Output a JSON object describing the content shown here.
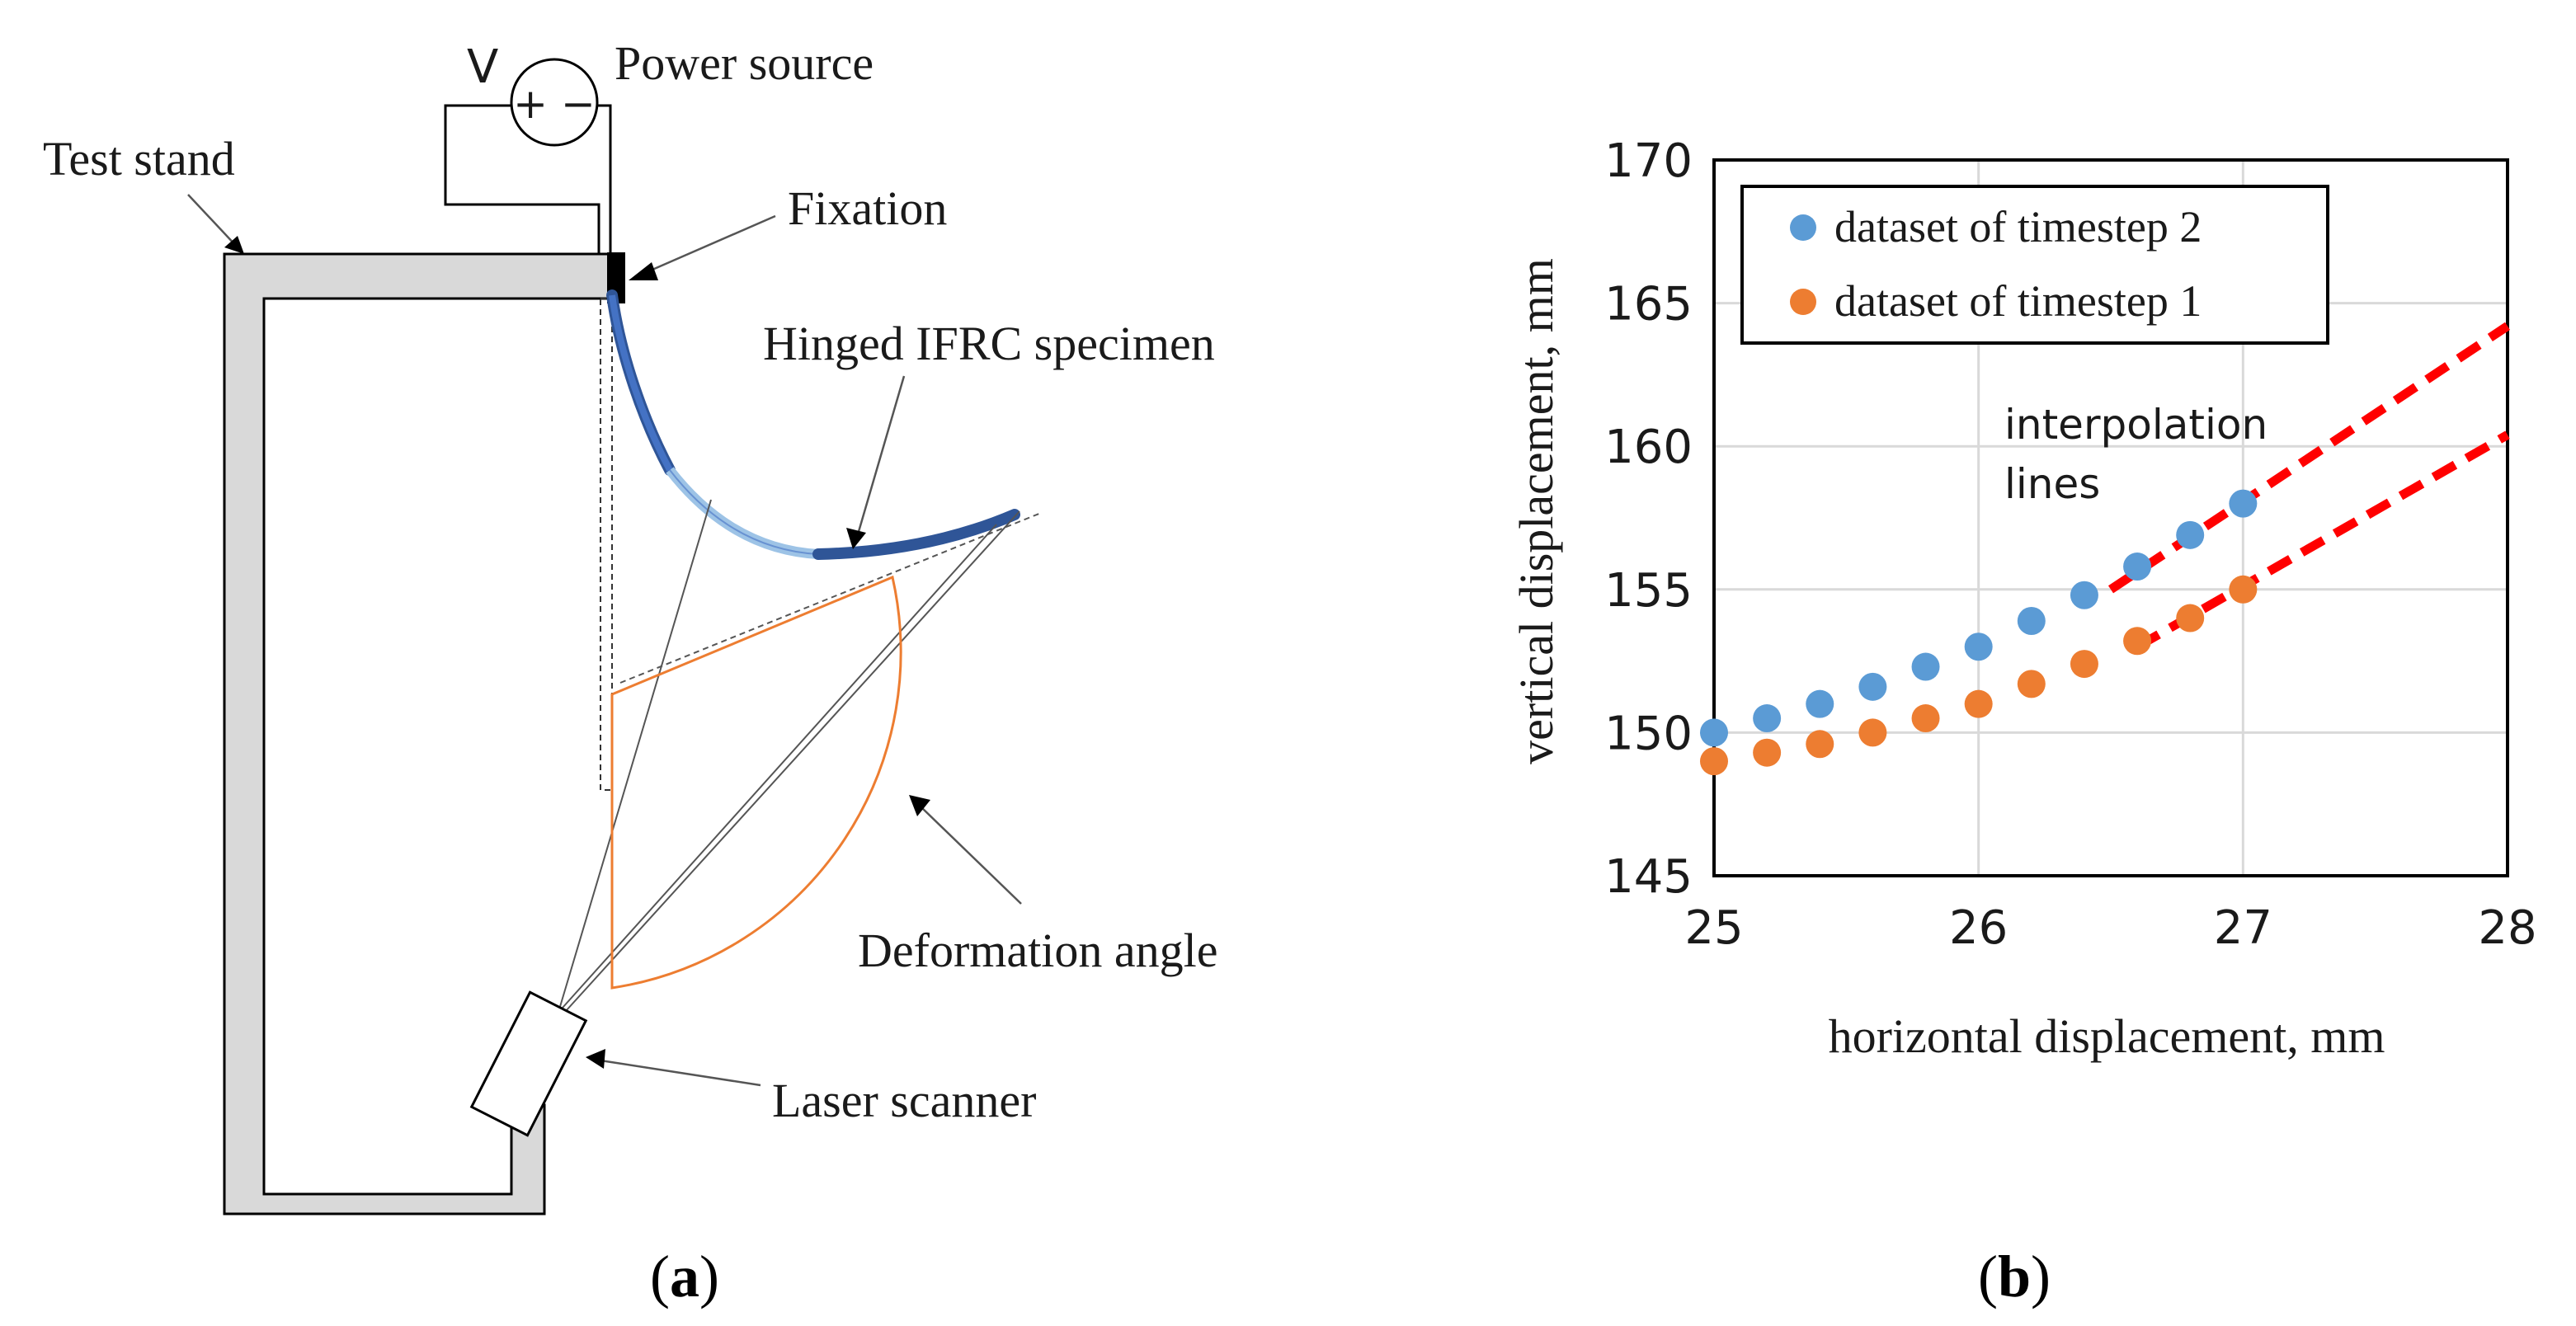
{
  "panel_a": {
    "caption_open": "(",
    "caption_letter": "a",
    "caption_close": ")",
    "labels": {
      "voltage": "V",
      "power_source": "Power source",
      "plus_minus": "+ −",
      "test_stand": "Test stand",
      "fixation": "Fixation",
      "specimen": "Hinged IFRC specimen",
      "deformation_angle": "Deformation angle",
      "laser_scanner": "Laser scanner"
    },
    "colors": {
      "stand_fill": "#d9d9d9",
      "specimen_dark": "#2f5597",
      "specimen_mid": "#4472c4",
      "specimen_light": "#9dc3e6",
      "angle_color": "#ed7d31"
    }
  },
  "panel_b": {
    "caption_open": "(",
    "caption_letter": "b",
    "caption_close": ")"
  },
  "chart_data": {
    "type": "scatter",
    "xlabel": "horizontal displacement, mm",
    "ylabel": "vertical displacement, mm",
    "xlim": [
      25,
      28
    ],
    "ylim": [
      145,
      170
    ],
    "xticks": [
      "25",
      "26",
      "27",
      "28"
    ],
    "yticks": [
      "145",
      "150",
      "155",
      "160",
      "165",
      "170"
    ],
    "grid": true,
    "legend_position": "top-left",
    "series": [
      {
        "name": "dataset of timestep 2",
        "color": "#5b9bd5",
        "x": [
          25.0,
          25.2,
          25.4,
          25.6,
          25.8,
          26.0,
          26.2,
          26.4,
          26.6,
          26.8,
          27.0
        ],
        "y": [
          150.0,
          150.5,
          151.0,
          151.6,
          152.3,
          153.0,
          153.9,
          154.8,
          155.8,
          156.9,
          158.0
        ]
      },
      {
        "name": "dataset of timestep 1",
        "color": "#ed7d31",
        "x": [
          25.0,
          25.2,
          25.4,
          25.6,
          25.8,
          26.0,
          26.2,
          26.4,
          26.6,
          26.8,
          27.0
        ],
        "y": [
          149.0,
          149.3,
          149.6,
          150.0,
          150.5,
          151.0,
          151.7,
          152.4,
          153.2,
          154.0,
          155.0
        ]
      }
    ],
    "interpolation_lines": [
      {
        "name": "interpolation timestep 2",
        "x": [
          26.5,
          28.0
        ],
        "y": [
          155.0,
          164.2
        ]
      },
      {
        "name": "interpolation timestep 1",
        "x": [
          26.6,
          28.0
        ],
        "y": [
          153.0,
          160.4
        ]
      }
    ],
    "interpolation_color": "#ff0000",
    "annotation": [
      "interpolation",
      "lines"
    ]
  }
}
